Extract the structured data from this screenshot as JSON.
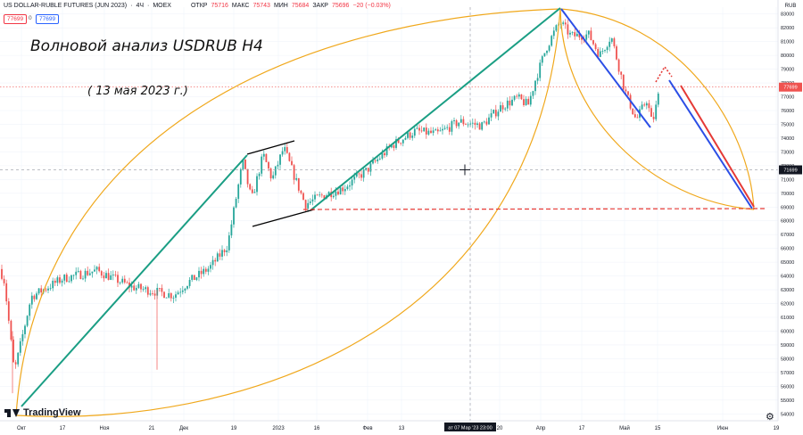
{
  "header": {
    "symbol": "US DOLLAR-RUBLE FUTURES (JUN 2023)",
    "interval": "4Ч",
    "exchange": "MOEX",
    "open_label": "ОТКР",
    "open": "75716",
    "high_label": "МАКС",
    "high": "75743",
    "low_label": "МИН",
    "low": "75684",
    "close_label": "ЗАКР",
    "close": "75696",
    "change": "−20 (−0.03%)"
  },
  "bid_pill": "77699",
  "spread": "0",
  "ask_pill": "77699",
  "annotation_title": "Волновой анализ USDRUB H4",
  "annotation_date": "( 13 мая 2023 г.)",
  "brand": "TradingView",
  "colors": {
    "up": "#26a69a",
    "down": "#ef5350",
    "wave": "#1a9e84",
    "channel": "#000000",
    "blue": "#2b4ee6",
    "red": "#e53935",
    "arc": "#f0a81c",
    "dashed": "#e53935"
  },
  "chart_data": {
    "type": "candlestick",
    "currency": "RUB",
    "ylim": [
      53500,
      83500
    ],
    "y_ticks": [
      54000,
      55000,
      56000,
      57000,
      58000,
      59000,
      60000,
      61000,
      62000,
      63000,
      64000,
      65000,
      66000,
      67000,
      68000,
      69000,
      70000,
      71000,
      72000,
      73000,
      74000,
      75000,
      76000,
      77000,
      78000,
      79000,
      80000,
      81000,
      82000,
      83000
    ],
    "x_ticks": [
      "Окт",
      "17",
      "Ноя",
      "21",
      "Дек",
      "19",
      "2023",
      "16",
      "Фев",
      "13",
      "ат 07 Мар '23  23:00",
      "20",
      "Апр",
      "17",
      "Май",
      "15",
      "Июн",
      "19"
    ],
    "last_price": "77699",
    "crosshair_price": "71699",
    "path": [
      [
        64500,
        0
      ],
      [
        63600,
        5
      ],
      [
        57000,
        16
      ],
      [
        62500,
        35
      ],
      [
        63800,
        70
      ],
      [
        64400,
        108
      ],
      [
        63200,
        148
      ],
      [
        62600,
        195
      ],
      [
        63500,
        210
      ],
      [
        64600,
        235
      ],
      [
        66200,
        255
      ],
      [
        72300,
        272
      ],
      [
        69500,
        282
      ],
      [
        72800,
        295
      ],
      [
        71000,
        305
      ],
      [
        73300,
        318
      ],
      [
        71200,
        330
      ],
      [
        69200,
        342
      ],
      [
        69800,
        360
      ],
      [
        70400,
        385
      ],
      [
        71600,
        410
      ],
      [
        73500,
        440
      ],
      [
        74500,
        465
      ],
      [
        74300,
        490
      ],
      [
        75200,
        515
      ],
      [
        74900,
        540
      ],
      [
        76300,
        562
      ],
      [
        76900,
        580
      ],
      [
        76400,
        592
      ],
      [
        78200,
        600
      ],
      [
        80500,
        612
      ],
      [
        81800,
        622
      ],
      [
        82400,
        628
      ],
      [
        81400,
        640
      ],
      [
        81500,
        660
      ],
      [
        80000,
        672
      ],
      [
        81400,
        685
      ],
      [
        77500,
        700
      ],
      [
        75300,
        713
      ],
      [
        76800,
        725
      ],
      [
        75000,
        731
      ],
      [
        77700,
        740
      ]
    ]
  }
}
